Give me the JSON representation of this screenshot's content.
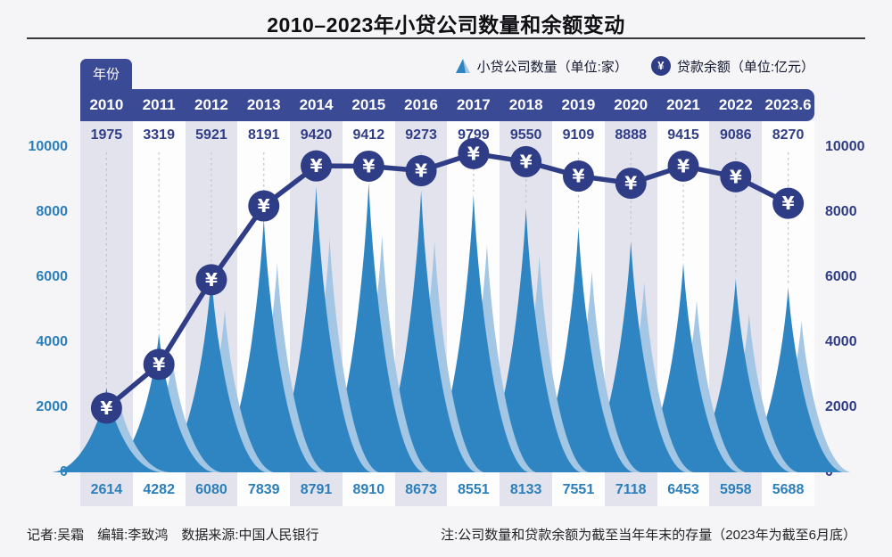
{
  "title": "2010–2023年小贷公司数量和余额变动",
  "header": {
    "year_label": "年份"
  },
  "legend": {
    "company": {
      "label": "小贷公司数量（单位:家）"
    },
    "balance": {
      "label": "贷款余额（单位:亿元）"
    }
  },
  "icons": {
    "yen_symbol": "¥"
  },
  "axis": {
    "left_ticks": [
      "10000",
      "8000",
      "6000",
      "4000",
      "2000",
      "0"
    ],
    "right_ticks": [
      "10000",
      "8000",
      "6000",
      "4000",
      "2000",
      "0"
    ]
  },
  "chart_data": {
    "type": "area+line",
    "categories": [
      "2010",
      "2011",
      "2012",
      "2013",
      "2014",
      "2015",
      "2016",
      "2017",
      "2018",
      "2019",
      "2020",
      "2021",
      "2022",
      "2023.6"
    ],
    "series": [
      {
        "name": "小贷公司数量（单位:家）",
        "type": "area-spike",
        "values": [
          2614,
          4282,
          6080,
          7839,
          8791,
          8910,
          8673,
          8551,
          8133,
          7551,
          7118,
          6453,
          5958,
          5688
        ]
      },
      {
        "name": "贷款余额（单位:亿元）",
        "type": "line",
        "values": [
          1975,
          3319,
          5921,
          8191,
          9420,
          9412,
          9273,
          9799,
          9550,
          9109,
          8888,
          9415,
          9086,
          8270
        ]
      }
    ],
    "ylim": [
      0,
      10000
    ],
    "legend_position": "top-right",
    "grid": "off"
  },
  "colors": {
    "band_navy": "#3b4a95",
    "marker_navy": "#2f3c86",
    "spike_blue": "#2e85c1",
    "spike_light_blue": "#a2c6e4",
    "stripe_lavender": "#e3e3ee",
    "axis_left_blue": "#2b7fba",
    "axis_right_navy": "#303d86",
    "dash_gray": "#c2c2cc",
    "title_underline": "#37373c"
  },
  "footer": {
    "left": "记者:吴霜　编辑:李致鸿　数据来源:中国人民银行",
    "right": "注:公司数量和贷款余额为截至当年年末的存量（2023年为截至6月底）"
  }
}
